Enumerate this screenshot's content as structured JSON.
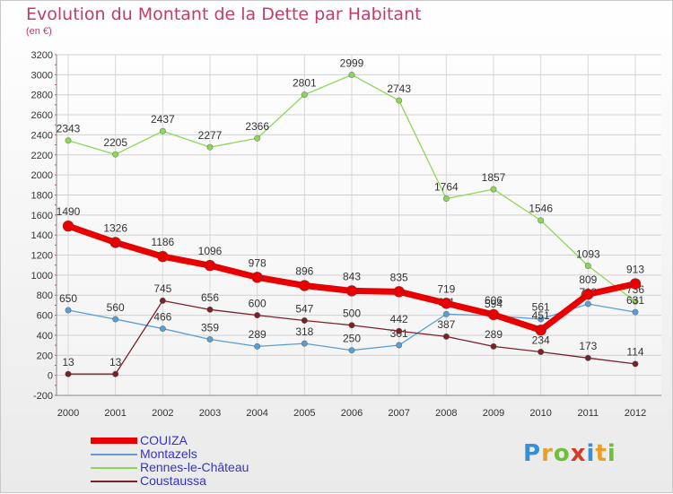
{
  "title": "Evolution du Montant de la Dette par Habitant",
  "subtitle": "(en €)",
  "logo": "Proxiti",
  "colors": {
    "COUIZA": "#e80000",
    "Montazels": "#5a9fd4",
    "Rennes-le-Château": "#8ed65a",
    "Coustaussa": "#7a2228",
    "title": "#c03c6e",
    "legend_text": "#3333cc"
  },
  "chart_data": {
    "type": "line",
    "title": "Evolution du Montant de la Dette par Habitant",
    "ylabel": "(en €)",
    "x": [
      2000,
      2001,
      2002,
      2003,
      2004,
      2005,
      2006,
      2007,
      2008,
      2009,
      2010,
      2011,
      2012
    ],
    "ylim": [
      -200,
      3200
    ],
    "yticks": [
      -200,
      0,
      200,
      400,
      600,
      800,
      1000,
      1200,
      1400,
      1600,
      1800,
      2000,
      2200,
      2400,
      2600,
      2800,
      3000,
      3200
    ],
    "grid": true,
    "legend": "bottom-left",
    "series": [
      {
        "name": "Rennes-le-Château",
        "values": [
          2343,
          2205,
          2437,
          2277,
          2366,
          2801,
          2999,
          2743,
          1764,
          1857,
          1546,
          1093,
          736
        ]
      },
      {
        "name": "Montazels",
        "values": [
          650,
          560,
          466,
          359,
          289,
          318,
          250,
          301,
          611,
          594,
          561,
          713,
          631
        ]
      },
      {
        "name": "Coustaussa",
        "values": [
          13,
          13,
          745,
          656,
          600,
          547,
          500,
          442,
          387,
          289,
          234,
          173,
          114
        ]
      },
      {
        "name": "COUIZA",
        "values": [
          1490,
          1326,
          1186,
          1096,
          978,
          896,
          843,
          835,
          719,
          606,
          451,
          809,
          913
        ]
      }
    ]
  },
  "legend_items": [
    "COUIZA",
    "Montazels",
    "Rennes-le-Château",
    "Coustaussa"
  ]
}
